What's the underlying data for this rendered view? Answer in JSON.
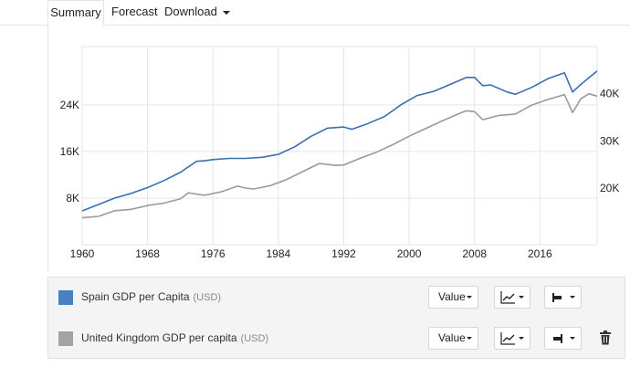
{
  "tabs": [
    {
      "label": "Summary",
      "active": true
    },
    {
      "label": "Forecast",
      "active": false
    },
    {
      "label": "Download",
      "active": false,
      "has_dropdown": true
    }
  ],
  "chart_data": {
    "type": "line",
    "title": "",
    "xlabel": "",
    "x_ticks": [
      "1960",
      "1968",
      "1976",
      "1984",
      "1992",
      "2000",
      "2008",
      "2016"
    ],
    "xlim": [
      1960,
      2023
    ],
    "left_axis": {
      "ticks": [
        "8K",
        "16K",
        "24K"
      ],
      "tick_values": [
        8000,
        16000,
        24000
      ],
      "ylim": [
        0,
        34000
      ]
    },
    "right_axis": {
      "ticks": [
        "20K",
        "30K",
        "40K"
      ],
      "tick_values": [
        20000,
        30000,
        40000
      ],
      "ylim": [
        8000,
        50000
      ]
    },
    "series": [
      {
        "name": "Spain GDP per Capita",
        "unit": "USD",
        "color": "#3c6eb4",
        "axis": "left",
        "points": [
          [
            1960,
            5800
          ],
          [
            1962,
            6900
          ],
          [
            1964,
            8000
          ],
          [
            1966,
            8800
          ],
          [
            1968,
            9800
          ],
          [
            1970,
            11000
          ],
          [
            1972,
            12400
          ],
          [
            1974,
            14300
          ],
          [
            1975,
            14400
          ],
          [
            1976,
            14600
          ],
          [
            1978,
            14800
          ],
          [
            1980,
            14800
          ],
          [
            1982,
            15000
          ],
          [
            1984,
            15500
          ],
          [
            1986,
            16800
          ],
          [
            1988,
            18600
          ],
          [
            1990,
            20000
          ],
          [
            1992,
            20200
          ],
          [
            1993,
            19800
          ],
          [
            1995,
            20800
          ],
          [
            1997,
            22000
          ],
          [
            1999,
            24000
          ],
          [
            2001,
            25600
          ],
          [
            2003,
            26300
          ],
          [
            2005,
            27500
          ],
          [
            2007,
            28700
          ],
          [
            2008,
            28700
          ],
          [
            2009,
            27300
          ],
          [
            2010,
            27400
          ],
          [
            2012,
            26200
          ],
          [
            2013,
            25800
          ],
          [
            2015,
            27000
          ],
          [
            2017,
            28500
          ],
          [
            2019,
            29500
          ],
          [
            2020,
            26200
          ],
          [
            2021,
            27500
          ],
          [
            2023,
            29800
          ]
        ]
      },
      {
        "name": "United Kingdom GDP per capita",
        "unit": "USD",
        "color": "#9a9a9a",
        "axis": "right",
        "points": [
          [
            1960,
            13700
          ],
          [
            1962,
            14000
          ],
          [
            1964,
            15200
          ],
          [
            1966,
            15500
          ],
          [
            1968,
            16300
          ],
          [
            1970,
            16800
          ],
          [
            1972,
            17700
          ],
          [
            1973,
            19000
          ],
          [
            1974,
            18700
          ],
          [
            1975,
            18500
          ],
          [
            1977,
            19200
          ],
          [
            1979,
            20400
          ],
          [
            1980,
            20000
          ],
          [
            1981,
            19800
          ],
          [
            1983,
            20500
          ],
          [
            1985,
            21800
          ],
          [
            1987,
            23500
          ],
          [
            1989,
            25200
          ],
          [
            1991,
            24800
          ],
          [
            1992,
            24900
          ],
          [
            1994,
            26300
          ],
          [
            1996,
            27600
          ],
          [
            1998,
            29200
          ],
          [
            2000,
            31000
          ],
          [
            2002,
            32600
          ],
          [
            2004,
            34200
          ],
          [
            2006,
            35700
          ],
          [
            2007,
            36400
          ],
          [
            2008,
            36200
          ],
          [
            2009,
            34500
          ],
          [
            2011,
            35400
          ],
          [
            2013,
            35700
          ],
          [
            2015,
            37600
          ],
          [
            2017,
            38800
          ],
          [
            2019,
            39800
          ],
          [
            2020,
            36000
          ],
          [
            2021,
            38900
          ],
          [
            2022,
            40000
          ],
          [
            2023,
            39500
          ]
        ]
      }
    ]
  },
  "legend": {
    "rows": [
      {
        "label": "Spain GDP per Capita",
        "unit": "(USD)",
        "color": "#4a7fc1",
        "value_label": "Value"
      },
      {
        "label": "United Kingdom GDP per capita",
        "unit": "(USD)",
        "color": "#a3a3a3",
        "value_label": "Value"
      }
    ]
  }
}
